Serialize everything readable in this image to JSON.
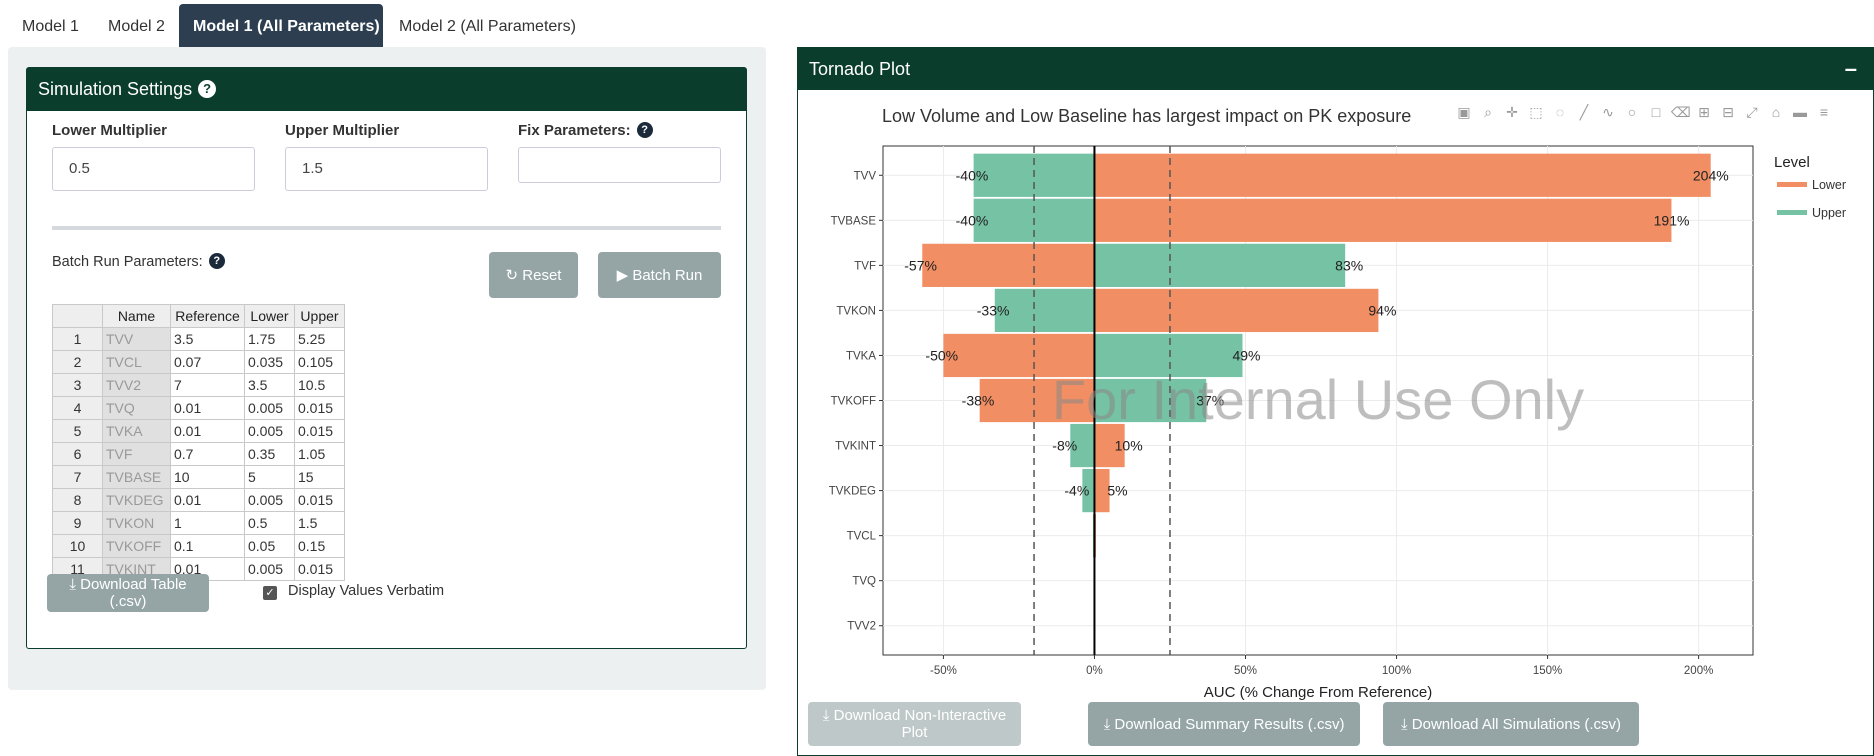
{
  "tabs": [
    {
      "label": "Model 1",
      "active": false
    },
    {
      "label": "Model 2",
      "active": false
    },
    {
      "label": "Model 1 (All Parameters)",
      "active": true
    },
    {
      "label": "Model 2 (All Parameters)",
      "active": false
    }
  ],
  "settings": {
    "title": "Simulation Settings",
    "help_icon": "?",
    "lower_multiplier_label": "Lower Multiplier",
    "lower_multiplier_value": "0.5",
    "upper_multiplier_label": "Upper Multiplier",
    "upper_multiplier_value": "1.5",
    "fix_params_label": "Fix Parameters:",
    "fix_params_value": "",
    "batch_label": "Batch Run Parameters:",
    "reset_label": "Reset",
    "batch_run_label": "Batch Run",
    "download_table_label": "Download Table (.csv)",
    "display_verbatim_label": "Display Values Verbatim",
    "display_verbatim_checked": true
  },
  "param_table": {
    "headers": [
      "",
      "Name",
      "Reference",
      "Lower",
      "Upper"
    ],
    "rows": [
      [
        "1",
        "TVV",
        "3.5",
        "1.75",
        "5.25"
      ],
      [
        "2",
        "TVCL",
        "0.07",
        "0.035",
        "0.105"
      ],
      [
        "3",
        "TVV2",
        "7",
        "3.5",
        "10.5"
      ],
      [
        "4",
        "TVQ",
        "0.01",
        "0.005",
        "0.015"
      ],
      [
        "5",
        "TVKA",
        "0.01",
        "0.005",
        "0.015"
      ],
      [
        "6",
        "TVF",
        "0.7",
        "0.35",
        "1.05"
      ],
      [
        "7",
        "TVBASE",
        "10",
        "5",
        "15"
      ],
      [
        "8",
        "TVKDEG",
        "0.01",
        "0.005",
        "0.015"
      ],
      [
        "9",
        "TVKON",
        "1",
        "0.5",
        "1.5"
      ],
      [
        "10",
        "TVKOFF",
        "0.1",
        "0.05",
        "0.15"
      ],
      [
        "11",
        "TVKINT",
        "0.01",
        "0.005",
        "0.015"
      ]
    ]
  },
  "tornado": {
    "panel_title": "Tornado Plot",
    "collapse_label": "–",
    "plot_title": "Low Volume and Low Baseline has largest impact on PK exposure",
    "watermark": "For Internal Use Only",
    "download_noninteractive_label": "Download Non-Interactive Plot",
    "download_summary_label": "Download Summary Results (.csv)",
    "download_all_label": "Download All Simulations (.csv)",
    "modebar_icons": [
      "camera-icon",
      "zoom-icon",
      "pan-icon",
      "box-select-icon",
      "lasso-icon",
      "draw-line-icon",
      "draw-open-path-icon",
      "draw-circle-icon",
      "draw-rect-icon",
      "erase-shape-icon",
      "zoom-in-icon",
      "zoom-out-icon",
      "autoscale-icon",
      "reset-axes-icon",
      "toggle-spike-icon",
      "compare-hover-icon"
    ]
  },
  "chart_data": {
    "type": "bar",
    "orientation": "horizontal",
    "title": "Low Volume and Low Baseline has largest impact on PK exposure",
    "xlabel": "AUC (% Change From Reference)",
    "ylabel": "",
    "xlim": [
      -70,
      218
    ],
    "x_ticks": [
      -50,
      0,
      50,
      100,
      150,
      200
    ],
    "x_tick_labels": [
      "-50%",
      "0%",
      "50%",
      "100%",
      "150%",
      "200%"
    ],
    "reference_lines": [
      -20,
      25
    ],
    "grid": true,
    "legend": {
      "title": "Level",
      "position": "right"
    },
    "categories": [
      "TVV",
      "TVBASE",
      "TVF",
      "TVKON",
      "TVKA",
      "TVKOFF",
      "TVKINT",
      "TVKDEG",
      "TVCL",
      "TVQ",
      "TVV2"
    ],
    "series": [
      {
        "name": "Lower",
        "color": "#f28e63",
        "values": [
          204,
          191,
          -57,
          94,
          -50,
          -38,
          10,
          5,
          0.5,
          0,
          0
        ],
        "labels": [
          "204%",
          "191%",
          "-57%",
          "94%",
          "-50%",
          "-38%",
          "10%",
          "5%",
          "",
          "",
          ""
        ]
      },
      {
        "name": "Upper",
        "color": "#75c2a5",
        "values": [
          -40,
          -40,
          83,
          -33,
          49,
          37,
          -8,
          -4,
          -0.5,
          0,
          0
        ],
        "labels": [
          "-40%",
          "-40%",
          "83%",
          "-33%",
          "49%",
          "37%",
          "-8%",
          "-4%",
          "",
          "",
          ""
        ]
      }
    ]
  }
}
